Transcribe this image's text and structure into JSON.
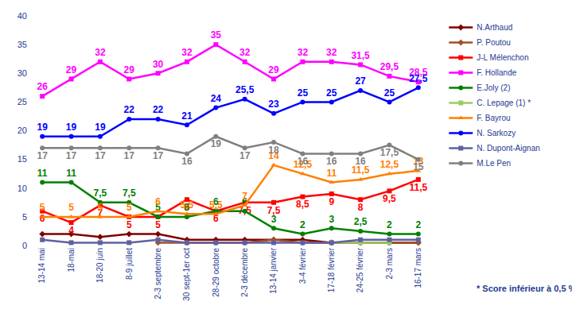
{
  "chart_data": {
    "type": "line",
    "categories": [
      "13-14 mai",
      "18-mai",
      "18-20 juin",
      "8-9 juillet",
      "2-3 septembre",
      "30 sept-1er oct",
      "28-29 octobre",
      "2-3 décembre",
      "13-14 janvier",
      "3-4 février",
      "17-18 février",
      "24-25 février",
      "2-3 mars",
      "16-17 mars"
    ],
    "ylim": [
      0,
      40
    ],
    "yticks": [
      0,
      5,
      10,
      15,
      20,
      25,
      30,
      35,
      40
    ],
    "grid": false,
    "legend": "right",
    "annotations": [
      {
        "text": "* Score inférieur à 0,5 %"
      }
    ],
    "series": [
      {
        "name": "N.Arthaud",
        "color": "#800000",
        "marker": "diamond",
        "data_labels": false,
        "values": [
          2,
          2,
          1.5,
          2,
          2,
          1,
          1,
          1,
          1,
          1,
          0.5,
          0.5,
          0.5,
          0.5
        ]
      },
      {
        "name": "P. Poutou",
        "color": "#A0522D",
        "marker": "diamond",
        "data_labels": false,
        "values": [
          null,
          null,
          null,
          null,
          0.5,
          0.5,
          0.5,
          0.5,
          1,
          0.5,
          0.5,
          0.5,
          0.5,
          0.5
        ]
      },
      {
        "name": "J-L Mélenchon",
        "color": "#FF0000",
        "marker": "square",
        "data_labels": true,
        "values": [
          6,
          4,
          7,
          5,
          5,
          8,
          6,
          7.5,
          7.5,
          8.5,
          9,
          8,
          9.5,
          11.5
        ],
        "value_labels": [
          "6",
          "4",
          "7",
          "5",
          "5",
          "8",
          "6",
          "7,5",
          "7,5",
          "8,5",
          "9",
          "8",
          "9,5",
          "11,5"
        ]
      },
      {
        "name": "F. Hollande",
        "color": "#FF00FF",
        "marker": "square",
        "data_labels": true,
        "values": [
          26,
          29,
          32,
          29,
          30,
          32,
          35,
          32,
          29,
          32,
          32,
          31.5,
          29.5,
          28.5
        ],
        "value_labels": [
          "26",
          "29",
          "32",
          "29",
          "30",
          "32",
          "35",
          "32",
          "29",
          "32",
          "32",
          "31,5",
          "29,5",
          "28,5"
        ]
      },
      {
        "name": "E.Joly (2)",
        "color": "#008000",
        "marker": "circle",
        "data_labels": true,
        "values": [
          11,
          11,
          7.5,
          7.5,
          5,
          5,
          6,
          6,
          3,
          2,
          3,
          2.5,
          2,
          2
        ],
        "value_labels": [
          "11",
          "11",
          "7,5",
          "7,5",
          "5",
          "5",
          "6",
          "6",
          "3",
          "2",
          "3",
          "2,5",
          "2",
          "2"
        ]
      },
      {
        "name": "C. Lepage (1) *",
        "color": "#99CC66",
        "marker": "square",
        "data_labels": false,
        "values": [
          null,
          null,
          null,
          null,
          null,
          null,
          null,
          null,
          null,
          null,
          0.5,
          0.5,
          0.5,
          null
        ]
      },
      {
        "name": "F. Bayrou",
        "color": "#FF8000",
        "marker": "triangle-up",
        "data_labels": true,
        "values": [
          5,
          5,
          5,
          5,
          6,
          5.5,
          5.5,
          7,
          14,
          12.5,
          11,
          11.5,
          12.5,
          13
        ],
        "value_labels": [
          "5",
          "5",
          "5",
          "5",
          "6",
          "5,5",
          "5,5",
          "7",
          "14",
          "12,5",
          "11",
          "11,5",
          "12,5",
          "13"
        ]
      },
      {
        "name": "N. Sarkozy",
        "color": "#0000FF",
        "marker": "circle",
        "data_labels": true,
        "values": [
          19,
          19,
          19,
          22,
          22,
          21,
          24,
          25.5,
          23,
          25,
          25,
          27,
          25,
          27.5
        ],
        "value_labels": [
          "19",
          "19",
          "19",
          "22",
          "22",
          "21",
          "24",
          "25,5",
          "23",
          "25",
          "25",
          "27",
          "25",
          "27,5"
        ]
      },
      {
        "name": "N. Dupont-Aignan",
        "color": "#6060A0",
        "marker": "square",
        "data_labels": false,
        "values": [
          1,
          0.5,
          0.5,
          0.5,
          1,
          0.5,
          0.5,
          0.5,
          0.5,
          0.5,
          0.5,
          1,
          1,
          1
        ]
      },
      {
        "name": "M.Le Pen",
        "color": "#808080",
        "marker": "circle",
        "data_labels": true,
        "values": [
          17,
          17,
          17,
          17,
          17,
          16,
          19,
          17,
          18,
          16,
          16,
          16,
          17.5,
          15
        ],
        "value_labels": [
          "17",
          "17",
          "17",
          "17",
          "17",
          "16",
          "19",
          "17",
          "18",
          "16",
          "16",
          "16",
          "17,5",
          "15"
        ]
      }
    ]
  }
}
